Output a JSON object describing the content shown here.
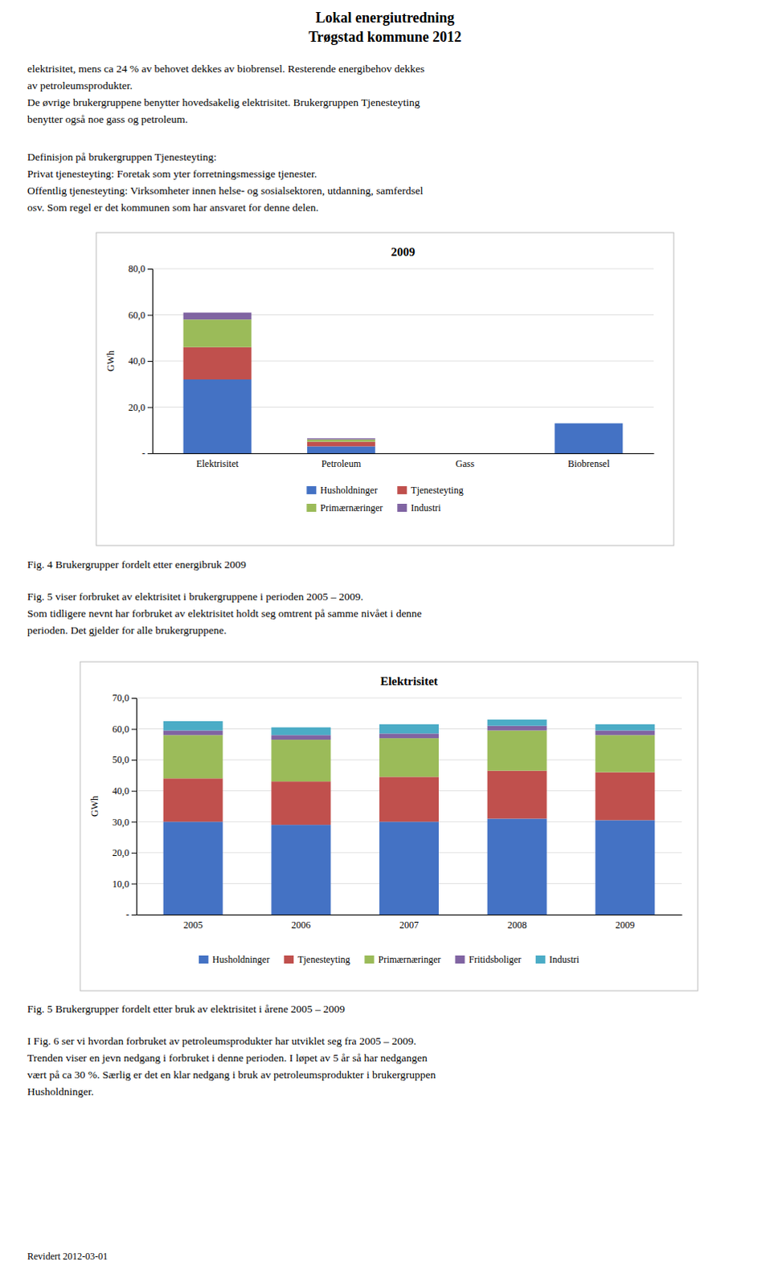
{
  "title": "Lokal energiutredning\nTrøgstad kommune 2012",
  "paragraphs": [
    "elektrisitet, mens ca 24 % av behovet dekkes av biobrensel. Resterende energibehov dekkes\nav petroleumsprodukter.",
    "De øvrige brukergruppene benytter hovedsakelig elektrisitet. Brukergruppen Tjenesteyting\nbenytter også noe gass og petroleum.",
    "Definisjon på brukergruppen Tjenesteyting:\nPrivat tjenesteyting: Foretak som yter forretningsmessige tjenester.\nOffentlig tjenesteyting: Virksomheter innen helse- og sosialsektoren, utdanning, samferdsel\nosv. Som regel er det kommunen som har ansvaret for denne delen.",
    "Fig. 4 Brukergrupper fordelt etter energibruk 2009",
    "Fig. 5 viser forbruket av elektrisitet i brukergruppene i perioden 2005 – 2009.\nSom tidligere nevnt har forbruket av elektrisitet holdt seg omtrent på samme nivået i denne\nperioden. Det gjelder for alle brukergruppene.",
    "Fig. 5 Brukergrupper fordelt etter bruk av elektrisitet i årene 2005 – 2009",
    "I Fig. 6 ser vi hvordan forbruket av petroleumsprodukter har utviklet seg fra 2005 – 2009.\nTrenden viser en jevn nedgang i forbruket i denne perioden. I løpet av 5 år så har nedgangen\nvært på ca 30 %. Særlig er det en klar nedgang i bruk av petroleumsprodukter i brukergruppen\nHusholdninger.",
    "Revidert 2012-03-01"
  ],
  "chart_data": [
    {
      "type": "bar",
      "title": "2009",
      "stacked": true,
      "grid": true,
      "legend": "bottom",
      "categories": [
        "Elektrisitet",
        "Petroleum",
        "Gass",
        "Biobrensel"
      ],
      "ylabel": "GWh",
      "ylim": [
        0,
        80
      ],
      "yticks": [
        {
          "value": 0,
          "label": "-"
        },
        {
          "value": 20,
          "label": "20,0"
        },
        {
          "value": 40,
          "label": "40,0"
        },
        {
          "value": 60,
          "label": "60,0"
        },
        {
          "value": 80,
          "label": "80,0"
        }
      ],
      "series": [
        {
          "name": "Husholdninger",
          "color": "#4472C4",
          "values": [
            32,
            3,
            0,
            13
          ]
        },
        {
          "name": "Tjenesteyting",
          "color": "#C0504D",
          "values": [
            14,
            2,
            0,
            0
          ]
        },
        {
          "name": "Primærnæringer",
          "color": "#9BBB59",
          "values": [
            12,
            1,
            0,
            0
          ]
        },
        {
          "name": "Industri",
          "color": "#8064A2",
          "values": [
            3,
            0.5,
            0,
            0
          ]
        }
      ]
    },
    {
      "type": "bar",
      "title": "Elektrisitet",
      "stacked": true,
      "grid": true,
      "legend": "bottom",
      "categories": [
        "2005",
        "2006",
        "2007",
        "2008",
        "2009"
      ],
      "ylabel": "GWh",
      "ylim": [
        0,
        70
      ],
      "yticks": [
        {
          "value": 0,
          "label": "-"
        },
        {
          "value": 10,
          "label": "10,0"
        },
        {
          "value": 20,
          "label": "20,0"
        },
        {
          "value": 30,
          "label": "30,0"
        },
        {
          "value": 40,
          "label": "40,0"
        },
        {
          "value": 50,
          "label": "50,0"
        },
        {
          "value": 60,
          "label": "60,0"
        },
        {
          "value": 70,
          "label": "70,0"
        }
      ],
      "series": [
        {
          "name": "Husholdninger",
          "color": "#4472C4",
          "values": [
            30.0,
            29.0,
            30.0,
            31.0,
            30.5
          ]
        },
        {
          "name": "Tjenesteyting",
          "color": "#C0504D",
          "values": [
            14.0,
            14.0,
            14.5,
            15.5,
            15.5
          ]
        },
        {
          "name": "Primærnæringer",
          "color": "#9BBB59",
          "values": [
            14.0,
            13.5,
            12.5,
            13.0,
            12.0
          ]
        },
        {
          "name": "Fritidsboliger",
          "color": "#8064A2",
          "values": [
            1.5,
            1.5,
            1.5,
            1.5,
            1.5
          ]
        },
        {
          "name": "Industri",
          "color": "#4BACC6",
          "values": [
            3.0,
            2.5,
            3.0,
            2.0,
            2.0
          ]
        }
      ]
    }
  ]
}
